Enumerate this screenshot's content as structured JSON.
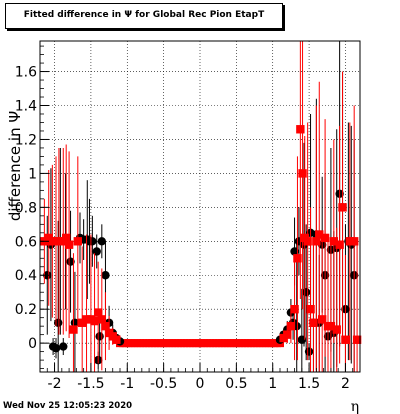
{
  "title": "Fitted difference in  Ψ  for Global Rec Pion EtapT",
  "footer_date": "Wed Nov 25 12:05:23 2020",
  "chart_data": {
    "type": "scatter",
    "title": "Fitted difference in  Ψ  for Global Rec Pion EtapT",
    "xlabel": "η",
    "ylabel": "difference in  Ψ",
    "xlim": [
      -2.2,
      2.2
    ],
    "ylim": [
      -0.17,
      1.78
    ],
    "x_ticks": [
      "-2",
      "-1.5",
      "-1",
      "-0.5",
      "0",
      "0.5",
      "1",
      "1.5",
      "2"
    ],
    "y_ticks": [
      "0",
      "0.2",
      "0.4",
      "0.6",
      "0.8",
      "1",
      "1.2",
      "1.4",
      "1.6"
    ],
    "grid": true,
    "colors": {
      "black_series": "#000000",
      "red_series": "#ff0000"
    },
    "series": [
      {
        "color": "#000000",
        "marker": "circle",
        "points": [
          {
            "x": -2.1,
            "y": 0.4,
            "err": 0.35
          },
          {
            "x": -2.05,
            "y": 0.58,
            "err": 0.45
          },
          {
            "x": -2.02,
            "y": -0.02,
            "err": 0.05
          },
          {
            "x": -1.98,
            "y": -0.03,
            "err": 0.06
          },
          {
            "x": -1.95,
            "y": 0.12,
            "err": 0.6
          },
          {
            "x": -1.92,
            "y": 0.6,
            "err": 0.55
          },
          {
            "x": -1.88,
            "y": -0.02,
            "err": 0.05
          },
          {
            "x": -1.85,
            "y": 0.6,
            "err": 0.4
          },
          {
            "x": -1.78,
            "y": 0.48,
            "err": 0.3
          },
          {
            "x": -1.72,
            "y": 0.12,
            "err": 0.3
          },
          {
            "x": -1.65,
            "y": 0.62,
            "err": 0.15
          },
          {
            "x": -1.6,
            "y": 0.61,
            "err": 0.12
          },
          {
            "x": -1.55,
            "y": 0.61,
            "err": 0.35
          },
          {
            "x": -1.52,
            "y": 0.6,
            "err": 0.25
          },
          {
            "x": -1.48,
            "y": 0.6,
            "err": 0.15
          },
          {
            "x": -1.42,
            "y": 0.54,
            "err": 0.1
          },
          {
            "x": -1.4,
            "y": -0.1,
            "err": 0.05
          },
          {
            "x": -1.38,
            "y": 0.04,
            "err": 0.15
          },
          {
            "x": -1.35,
            "y": 0.6,
            "err": 0.1
          },
          {
            "x": -1.3,
            "y": 0.4,
            "err": 0.2
          },
          {
            "x": -1.25,
            "y": 0.12,
            "err": 0.1
          },
          {
            "x": -1.2,
            "y": 0.06,
            "err": 0.05
          },
          {
            "x": -1.15,
            "y": 0.03,
            "err": 0.02
          },
          {
            "x": -1.1,
            "y": 0.01,
            "err": 0.01
          },
          {
            "x": 1.1,
            "y": 0.02,
            "err": 0.01
          },
          {
            "x": 1.15,
            "y": 0.05,
            "err": 0.03
          },
          {
            "x": 1.2,
            "y": 0.08,
            "err": 0.05
          },
          {
            "x": 1.25,
            "y": 0.18,
            "err": 0.08
          },
          {
            "x": 1.28,
            "y": 0.12,
            "err": 0.1
          },
          {
            "x": 1.3,
            "y": 0.54,
            "err": 0.2
          },
          {
            "x": 1.33,
            "y": 0.1,
            "err": 0.5
          },
          {
            "x": 1.36,
            "y": 0.6,
            "err": 0.2
          },
          {
            "x": 1.4,
            "y": 0.02,
            "err": 0.3
          },
          {
            "x": 1.43,
            "y": 0.58,
            "err": 0.6
          },
          {
            "x": 1.46,
            "y": 0.3,
            "err": 0.4
          },
          {
            "x": 1.5,
            "y": -0.05,
            "err": 0.05
          },
          {
            "x": 1.52,
            "y": 0.65,
            "err": 0.7
          },
          {
            "x": 1.56,
            "y": 0.12,
            "err": 0.5
          },
          {
            "x": 1.6,
            "y": 0.64,
            "err": 0.8
          },
          {
            "x": 1.64,
            "y": 0.12,
            "err": 0.4
          },
          {
            "x": 1.68,
            "y": 0.58,
            "err": 0.4
          },
          {
            "x": 1.72,
            "y": 0.4,
            "err": 0.6
          },
          {
            "x": 1.76,
            "y": 0.04,
            "err": 0.5
          },
          {
            "x": 1.8,
            "y": 0.55,
            "err": 0.6
          },
          {
            "x": 1.84,
            "y": 0.06,
            "err": 0.6
          },
          {
            "x": 1.88,
            "y": 0.56,
            "err": 0.7
          },
          {
            "x": 1.92,
            "y": 0.88,
            "err": 0.9
          },
          {
            "x": 1.96,
            "y": 0.8,
            "err": 0.8
          },
          {
            "x": 2.0,
            "y": 0.2,
            "err": 0.5
          },
          {
            "x": 2.04,
            "y": 0.6,
            "err": 0.7
          },
          {
            "x": 2.08,
            "y": 0.58,
            "err": 0.7
          },
          {
            "x": 2.12,
            "y": 0.4,
            "err": 0.8
          }
        ]
      },
      {
        "color": "#ff0000",
        "marker": "square",
        "points": [
          {
            "x": -2.14,
            "y": 0.6,
            "err": 0.25
          },
          {
            "x": -2.08,
            "y": 0.62,
            "err": 0.4
          },
          {
            "x": -2.03,
            "y": 0.6,
            "err": 0.45
          },
          {
            "x": -1.98,
            "y": 0.6,
            "err": 0.5
          },
          {
            "x": -1.94,
            "y": 0.6,
            "err": 0.55
          },
          {
            "x": -1.88,
            "y": 0.6,
            "err": 0.55
          },
          {
            "x": -1.84,
            "y": 0.62,
            "err": 0.55
          },
          {
            "x": -1.8,
            "y": 0.58,
            "err": 0.55
          },
          {
            "x": -1.74,
            "y": 0.08,
            "err": 0.45
          },
          {
            "x": -1.68,
            "y": 0.6,
            "err": 0.5
          },
          {
            "x": -1.62,
            "y": 0.12,
            "err": 0.45
          },
          {
            "x": -1.56,
            "y": 0.14,
            "err": 0.5
          },
          {
            "x": -1.5,
            "y": 0.14,
            "err": 0.5
          },
          {
            "x": -1.45,
            "y": 0.13,
            "err": 0.4
          },
          {
            "x": -1.4,
            "y": 0.18,
            "err": 0.3
          },
          {
            "x": -1.35,
            "y": 0.14,
            "err": 0.3
          },
          {
            "x": -1.3,
            "y": 0.1,
            "err": 0.2
          },
          {
            "x": -1.25,
            "y": 0.06,
            "err": 0.1
          },
          {
            "x": -1.2,
            "y": 0.04,
            "err": 0.05
          },
          {
            "x": -1.15,
            "y": 0.02,
            "err": 0.02
          },
          {
            "x": 1.15,
            "y": 0.03,
            "err": 0.02
          },
          {
            "x": 1.2,
            "y": 0.05,
            "err": 0.05
          },
          {
            "x": 1.25,
            "y": 0.1,
            "err": 0.1
          },
          {
            "x": 1.3,
            "y": 0.2,
            "err": 0.3
          },
          {
            "x": 1.34,
            "y": 0.5,
            "err": 0.6
          },
          {
            "x": 1.38,
            "y": 1.26,
            "err": 1.0
          },
          {
            "x": 1.41,
            "y": 1.0,
            "err": 0.8
          },
          {
            "x": 1.44,
            "y": 0.62,
            "err": 0.6
          },
          {
            "x": 1.48,
            "y": 0.6,
            "err": 0.7
          },
          {
            "x": 1.52,
            "y": 0.2,
            "err": 0.6
          },
          {
            "x": 1.56,
            "y": 0.12,
            "err": 0.5
          },
          {
            "x": 1.6,
            "y": 0.6,
            "err": 0.8
          },
          {
            "x": 1.64,
            "y": 0.64,
            "err": 0.9
          },
          {
            "x": 1.68,
            "y": 0.14,
            "err": 0.5
          },
          {
            "x": 1.72,
            "y": 0.62,
            "err": 0.7
          },
          {
            "x": 1.76,
            "y": 0.1,
            "err": 0.5
          },
          {
            "x": 1.8,
            "y": 0.1,
            "err": 0.5
          },
          {
            "x": 1.84,
            "y": 0.6,
            "err": 0.6
          },
          {
            "x": 1.88,
            "y": 0.08,
            "err": 0.6
          },
          {
            "x": 1.92,
            "y": 0.58,
            "err": 0.7
          },
          {
            "x": 1.96,
            "y": 0.8,
            "err": 0.8
          },
          {
            "x": 2.0,
            "y": 0.02,
            "err": 0.5
          },
          {
            "x": 2.06,
            "y": 0.6,
            "err": 0.7
          },
          {
            "x": 2.12,
            "y": 0.6,
            "err": 0.8
          },
          {
            "x": 2.16,
            "y": 0.02,
            "err": 0.6
          }
        ]
      }
    ],
    "central_band": {
      "x_from": -1.1,
      "x_to": 1.1,
      "step": 0.04,
      "y": 0.0,
      "color": "#ff0000"
    }
  }
}
